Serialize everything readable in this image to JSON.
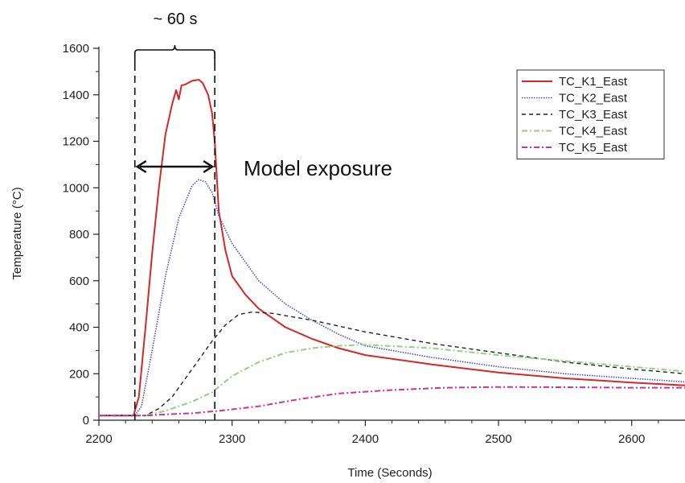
{
  "chart_data": {
    "type": "line",
    "xlabel": "Time (Seconds)",
    "ylabel": "Temperature (°C)",
    "xlim": [
      2200,
      2640
    ],
    "ylim": [
      0,
      1600
    ],
    "xticks": [
      2200,
      2300,
      2400,
      2500,
      2600
    ],
    "yticks": [
      0,
      200,
      400,
      600,
      800,
      1000,
      1200,
      1400,
      1600
    ],
    "grid": false,
    "legend_position": "top-right",
    "annotations": {
      "window_label": "~ 60 s",
      "exposure_label": "Model exposure",
      "window_start": 2227,
      "window_end": 2287
    },
    "series": [
      {
        "name": "TC_K1_East",
        "color": "#d62728",
        "style": "solid",
        "points": [
          [
            2200,
            20
          ],
          [
            2226,
            20
          ],
          [
            2230,
            100
          ],
          [
            2235,
            400
          ],
          [
            2240,
            720
          ],
          [
            2245,
            1000
          ],
          [
            2250,
            1230
          ],
          [
            2255,
            1360
          ],
          [
            2258,
            1420
          ],
          [
            2260,
            1380
          ],
          [
            2262,
            1440
          ],
          [
            2265,
            1445
          ],
          [
            2270,
            1460
          ],
          [
            2275,
            1465
          ],
          [
            2278,
            1450
          ],
          [
            2282,
            1400
          ],
          [
            2285,
            1320
          ],
          [
            2287,
            1200
          ],
          [
            2290,
            900
          ],
          [
            2295,
            730
          ],
          [
            2300,
            620
          ],
          [
            2305,
            580
          ],
          [
            2310,
            540
          ],
          [
            2320,
            480
          ],
          [
            2340,
            400
          ],
          [
            2360,
            350
          ],
          [
            2380,
            310
          ],
          [
            2400,
            280
          ],
          [
            2450,
            240
          ],
          [
            2500,
            205
          ],
          [
            2550,
            180
          ],
          [
            2600,
            162
          ],
          [
            2640,
            150
          ]
        ]
      },
      {
        "name": "TC_K2_East",
        "color": "#4a4ad0",
        "style": "dotted",
        "points": [
          [
            2200,
            20
          ],
          [
            2227,
            20
          ],
          [
            2232,
            60
          ],
          [
            2240,
            300
          ],
          [
            2250,
            620
          ],
          [
            2260,
            870
          ],
          [
            2270,
            1010
          ],
          [
            2275,
            1035
          ],
          [
            2280,
            1025
          ],
          [
            2285,
            980
          ],
          [
            2290,
            880
          ],
          [
            2300,
            760
          ],
          [
            2310,
            680
          ],
          [
            2320,
            600
          ],
          [
            2340,
            500
          ],
          [
            2360,
            430
          ],
          [
            2380,
            370
          ],
          [
            2400,
            320
          ],
          [
            2450,
            270
          ],
          [
            2500,
            230
          ],
          [
            2550,
            200
          ],
          [
            2600,
            180
          ],
          [
            2640,
            165
          ]
        ]
      },
      {
        "name": "TC_K3_East",
        "color": "#222222",
        "style": "dashed",
        "points": [
          [
            2200,
            20
          ],
          [
            2235,
            20
          ],
          [
            2245,
            50
          ],
          [
            2255,
            100
          ],
          [
            2265,
            180
          ],
          [
            2275,
            260
          ],
          [
            2285,
            340
          ],
          [
            2295,
            410
          ],
          [
            2305,
            455
          ],
          [
            2315,
            465
          ],
          [
            2330,
            460
          ],
          [
            2360,
            430
          ],
          [
            2400,
            380
          ],
          [
            2450,
            330
          ],
          [
            2500,
            290
          ],
          [
            2550,
            250
          ],
          [
            2600,
            220
          ],
          [
            2640,
            200
          ]
        ]
      },
      {
        "name": "TC_K4_East",
        "color": "#8fd37a",
        "style": "dashdot",
        "points": [
          [
            2200,
            20
          ],
          [
            2235,
            20
          ],
          [
            2250,
            40
          ],
          [
            2270,
            80
          ],
          [
            2285,
            120
          ],
          [
            2300,
            190
          ],
          [
            2320,
            250
          ],
          [
            2340,
            290
          ],
          [
            2360,
            310
          ],
          [
            2380,
            320
          ],
          [
            2400,
            325
          ],
          [
            2450,
            310
          ],
          [
            2500,
            280
          ],
          [
            2550,
            255
          ],
          [
            2600,
            230
          ],
          [
            2640,
            210
          ]
        ]
      },
      {
        "name": "TC_K5_East",
        "color": "#cc3399",
        "style": "dashdot",
        "points": [
          [
            2200,
            20
          ],
          [
            2235,
            20
          ],
          [
            2250,
            25
          ],
          [
            2270,
            30
          ],
          [
            2290,
            40
          ],
          [
            2320,
            60
          ],
          [
            2350,
            90
          ],
          [
            2380,
            115
          ],
          [
            2420,
            130
          ],
          [
            2460,
            140
          ],
          [
            2500,
            143
          ],
          [
            2550,
            142
          ],
          [
            2600,
            140
          ],
          [
            2640,
            140
          ]
        ]
      }
    ]
  }
}
